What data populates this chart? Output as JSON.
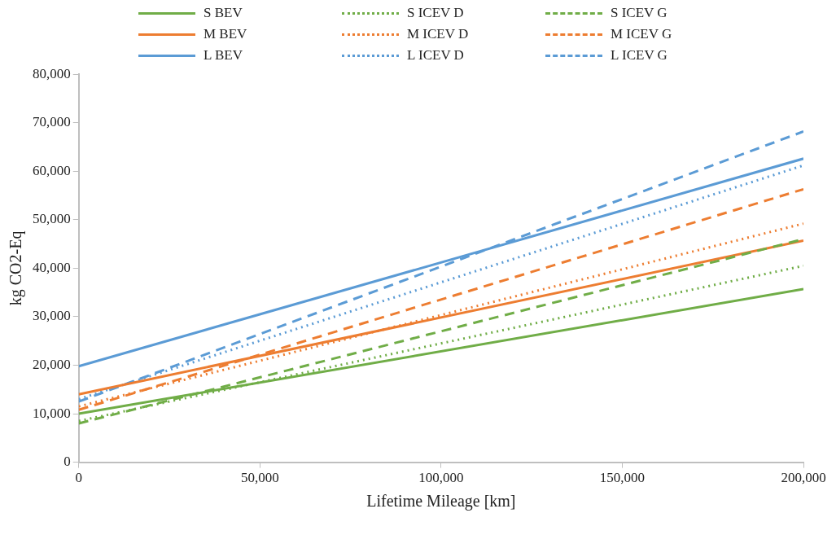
{
  "chart_data": {
    "type": "line",
    "xlabel": "Lifetime Mileage [km]",
    "ylabel": "kg CO2-Eq",
    "x": [
      0,
      200000
    ],
    "xlim": [
      0,
      200000
    ],
    "xticks": [
      {
        "value": 0,
        "label": "0"
      },
      {
        "value": 50000,
        "label": "50,000"
      },
      {
        "value": 100000,
        "label": "100,000"
      },
      {
        "value": 150000,
        "label": "150,000"
      },
      {
        "value": 200000,
        "label": "200,000"
      }
    ],
    "ylim": [
      0,
      80000
    ],
    "yticks": [
      {
        "value": 0,
        "label": "0"
      },
      {
        "value": 10000,
        "label": "10,000"
      },
      {
        "value": 20000,
        "label": "20,000"
      },
      {
        "value": 30000,
        "label": "30,000"
      },
      {
        "value": 40000,
        "label": "40,000"
      },
      {
        "value": 50000,
        "label": "50,000"
      },
      {
        "value": 60000,
        "label": "60,000"
      },
      {
        "value": 70000,
        "label": "70,000"
      },
      {
        "value": 80000,
        "label": "80,000"
      }
    ],
    "grid": false,
    "legend": "top",
    "marker": "none",
    "series": [
      {
        "name": "S BEV",
        "color": "#70ad47",
        "line_style": "solid",
        "values": [
          10000,
          35700
        ]
      },
      {
        "name": "S ICEV D",
        "color": "#70ad47",
        "line_style": "dotted",
        "values": [
          8500,
          40500
        ]
      },
      {
        "name": "S ICEV G",
        "color": "#70ad47",
        "line_style": "dashed",
        "values": [
          8000,
          46000
        ]
      },
      {
        "name": "M BEV",
        "color": "#ed7d31",
        "line_style": "solid",
        "values": [
          14000,
          45700
        ]
      },
      {
        "name": "M ICEV D",
        "color": "#ed7d31",
        "line_style": "dotted",
        "values": [
          11500,
          49200
        ]
      },
      {
        "name": "M ICEV G",
        "color": "#ed7d31",
        "line_style": "dashed",
        "values": [
          10800,
          56300
        ]
      },
      {
        "name": "L BEV",
        "color": "#5b9bd5",
        "line_style": "solid",
        "values": [
          19800,
          62600
        ]
      },
      {
        "name": "L ICEV D",
        "color": "#5b9bd5",
        "line_style": "dotted",
        "values": [
          13000,
          61200
        ]
      },
      {
        "name": "L ICEV G",
        "color": "#5b9bd5",
        "line_style": "dashed",
        "values": [
          12500,
          68200
        ]
      }
    ]
  }
}
